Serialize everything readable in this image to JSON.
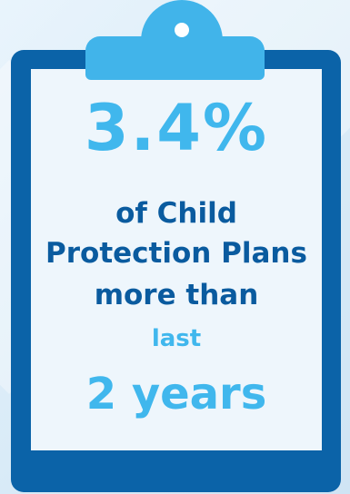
{
  "colors": {
    "board": "#0b63a8",
    "paper": "#eef6fc",
    "clip": "#41b4ea",
    "hole": "#ffffff",
    "accent": "#40b7ed",
    "text_dark": "#0a5b9f"
  },
  "stat": {
    "value": "3.4%",
    "line1": "of Child",
    "line2": "Protection Plans",
    "line3": "more than",
    "line4": "last",
    "line5": "2 years"
  }
}
